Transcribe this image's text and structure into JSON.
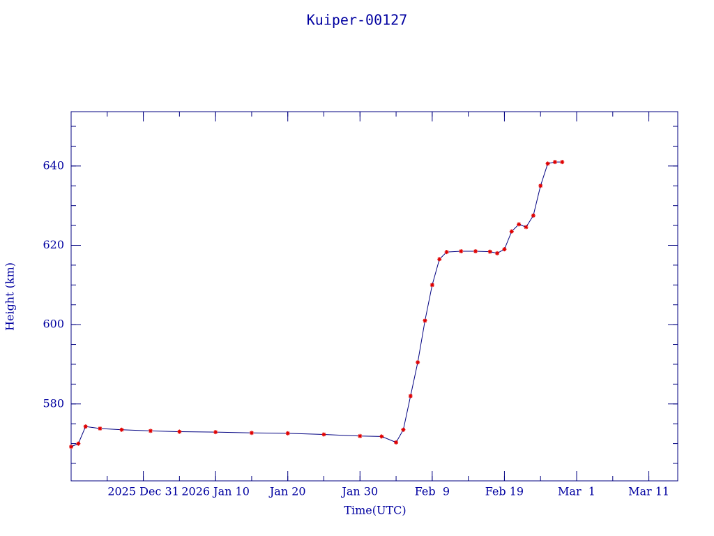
{
  "chart_data": {
    "type": "line",
    "title": "Kuiper-00127",
    "x_label": "Time(UTC)",
    "y_label": "Height (km)",
    "x": [
      "2025-12-21",
      "2025-12-22",
      "2025-12-23",
      "2025-12-25",
      "2025-12-28",
      "2026-01-01",
      "2026-01-05",
      "2026-01-10",
      "2026-01-15",
      "2026-01-20",
      "2026-01-25",
      "2026-01-30",
      "2026-02-02",
      "2026-02-04",
      "2026-02-05",
      "2026-02-06",
      "2026-02-07",
      "2026-02-08",
      "2026-02-09",
      "2026-02-10",
      "2026-02-11",
      "2026-02-13",
      "2026-02-15",
      "2026-02-17",
      "2026-02-18",
      "2026-02-19",
      "2026-02-20",
      "2026-02-21",
      "2026-02-22",
      "2026-02-23",
      "2026-02-24",
      "2026-02-25",
      "2026-02-26",
      "2026-02-27"
    ],
    "series": [
      {
        "color": "#000080",
        "marker_color": "#e00000",
        "values": [
          569.2,
          570,
          574.3,
          573.8,
          573.5,
          573.2,
          573,
          572.9,
          572.7,
          572.6,
          572.3,
          571.9,
          571.8,
          570.3,
          573.5,
          582,
          590.5,
          601,
          610,
          616.5,
          618.3,
          618.5,
          618.5,
          618.4,
          618,
          619,
          623.5,
          625.3,
          624.6,
          627.5,
          635,
          640.6,
          641,
          641
        ]
      }
    ],
    "xlim": [
      "2025-12-21",
      "2026-03-15"
    ],
    "xticks": [
      {
        "value": "2025-12-31",
        "label": "2025 Dec 31"
      },
      {
        "value": "2026-01-10",
        "label": "2026 Jan 10"
      },
      {
        "value": "2026-01-20",
        "label": "Jan 20"
      },
      {
        "value": "2026-01-30",
        "label": "Jan 30"
      },
      {
        "value": "2026-02-09",
        "label": "Feb  9"
      },
      {
        "value": "2026-02-19",
        "label": "Feb 19"
      },
      {
        "value": "2026-03-01",
        "label": "Mar  1"
      },
      {
        "value": "2026-03-11",
        "label": "Mar 11"
      }
    ],
    "ylim": [
      560.6,
      653.7
    ],
    "yticks": [
      580,
      600,
      620,
      640
    ]
  }
}
